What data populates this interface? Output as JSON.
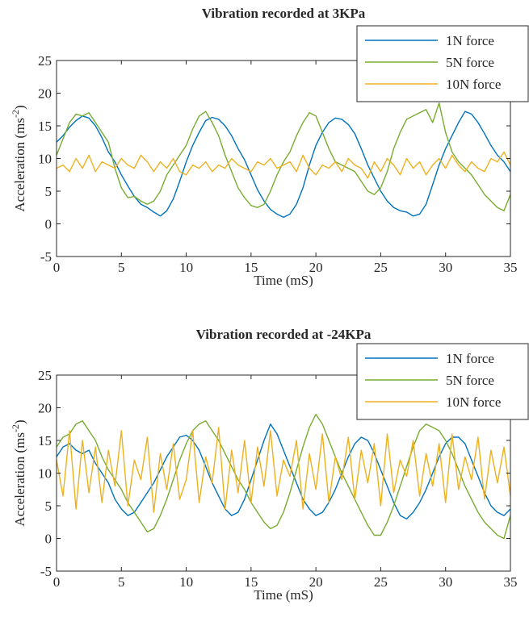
{
  "chart_data": [
    {
      "type": "line",
      "title": "Vibration recorded at 3KPa",
      "xlabel": "Time (mS)",
      "ylabel": "Acceleration (ms",
      "ylabel_sup": "-2",
      "ylabel_end": ")",
      "xlim": [
        0,
        35
      ],
      "ylim": [
        -5,
        25
      ],
      "xticks": [
        0,
        5,
        10,
        15,
        20,
        25,
        30,
        35
      ],
      "yticks": [
        -5,
        0,
        5,
        10,
        15,
        20,
        25
      ],
      "legend_position": "top-right",
      "grid": false,
      "series": [
        {
          "name": "1N force",
          "color": "#0072BD",
          "x": [
            0,
            0.5,
            1,
            1.5,
            2,
            2.5,
            3,
            3.5,
            4,
            4.5,
            5,
            5.5,
            6,
            6.5,
            7,
            7.5,
            8,
            8.5,
            9,
            9.5,
            10,
            10.5,
            11,
            11.5,
            12,
            12.5,
            13,
            13.5,
            14,
            14.5,
            15,
            15.5,
            16,
            16.5,
            17,
            17.5,
            18,
            18.5,
            19,
            19.5,
            20,
            20.5,
            21,
            21.5,
            22,
            22.5,
            23,
            23.5,
            24,
            24.5,
            25,
            25.5,
            26,
            26.5,
            27,
            27.5,
            28,
            28.5,
            29,
            29.5,
            30,
            30.5,
            31,
            31.5,
            32,
            32.5,
            33,
            33.5,
            34,
            34.5,
            35
          ],
          "y": [
            12.5,
            13.5,
            14.8,
            15.8,
            16.5,
            16.2,
            15.0,
            13.2,
            11.0,
            9.5,
            7.5,
            5.8,
            4.2,
            3.0,
            2.5,
            1.8,
            1.2,
            2.0,
            3.8,
            6.5,
            9.5,
            12.0,
            14.0,
            15.8,
            16.3,
            16.0,
            15.0,
            13.5,
            11.5,
            9.8,
            7.5,
            5.2,
            3.5,
            2.2,
            1.5,
            1.0,
            1.5,
            3.0,
            5.5,
            9.0,
            12.0,
            14.0,
            15.5,
            16.2,
            16.0,
            15.2,
            13.8,
            11.5,
            9.0,
            7.0,
            5.0,
            3.5,
            2.5,
            2.0,
            1.8,
            1.2,
            1.5,
            3.0,
            6.0,
            9.0,
            11.5,
            13.5,
            15.5,
            17.2,
            16.8,
            15.5,
            13.8,
            12.0,
            10.5,
            9.5,
            8.0
          ]
        },
        {
          "name": "5N force",
          "color": "#77AC30",
          "x": [
            0,
            0.5,
            1,
            1.5,
            2,
            2.5,
            3,
            3.5,
            4,
            4.5,
            5,
            5.5,
            6,
            6.5,
            7,
            7.5,
            8,
            8.5,
            9,
            9.5,
            10,
            10.5,
            11,
            11.5,
            12,
            12.5,
            13,
            13.5,
            14,
            14.5,
            15,
            15.5,
            16,
            16.5,
            17,
            17.5,
            18,
            18.5,
            19,
            19.5,
            20,
            20.5,
            21,
            21.5,
            22,
            22.5,
            23,
            23.5,
            24,
            24.5,
            25,
            25.5,
            26,
            26.5,
            27,
            27.5,
            28,
            28.5,
            29,
            29.5,
            30,
            30.5,
            31,
            31.5,
            32,
            32.5,
            33,
            33.5,
            34,
            34.5,
            35
          ],
          "y": [
            10.5,
            13.0,
            15.5,
            16.8,
            16.5,
            17.0,
            15.5,
            14.0,
            12.5,
            8.5,
            5.5,
            4.0,
            4.2,
            3.5,
            3.0,
            3.5,
            5.0,
            7.5,
            9.0,
            10.5,
            12.0,
            14.5,
            16.5,
            17.2,
            15.5,
            13.5,
            10.5,
            8.0,
            5.5,
            4.0,
            2.8,
            2.5,
            3.0,
            5.0,
            7.5,
            9.5,
            11.0,
            13.5,
            15.5,
            17.0,
            16.5,
            14.0,
            11.5,
            9.5,
            9.0,
            8.5,
            8.0,
            6.5,
            5.0,
            4.5,
            5.5,
            8.0,
            11.5,
            14.0,
            16.0,
            16.5,
            17.0,
            17.5,
            15.5,
            18.5,
            14.0,
            11.0,
            9.5,
            8.5,
            7.5,
            6.0,
            4.5,
            3.5,
            2.5,
            2.0,
            4.5
          ]
        },
        {
          "name": "10N force",
          "color": "#EDB120",
          "x": [
            0,
            0.5,
            1,
            1.5,
            2,
            2.5,
            3,
            3.5,
            4,
            4.5,
            5,
            5.5,
            6,
            6.5,
            7,
            7.5,
            8,
            8.5,
            9,
            9.5,
            10,
            10.5,
            11,
            11.5,
            12,
            12.5,
            13,
            13.5,
            14,
            14.5,
            15,
            15.5,
            16,
            16.5,
            17,
            17.5,
            18,
            18.5,
            19,
            19.5,
            20,
            20.5,
            21,
            21.5,
            22,
            22.5,
            23,
            23.5,
            24,
            24.5,
            25,
            25.5,
            26,
            26.5,
            27,
            27.5,
            28,
            28.5,
            29,
            29.5,
            30,
            30.5,
            31,
            31.5,
            32,
            32.5,
            33,
            33.5,
            34,
            34.5,
            35
          ],
          "y": [
            8.5,
            9.0,
            8.0,
            10.0,
            8.5,
            10.5,
            8.0,
            9.5,
            9.0,
            8.5,
            10.0,
            9.0,
            8.5,
            10.5,
            9.5,
            8.0,
            9.5,
            8.5,
            10.0,
            8.0,
            7.5,
            9.0,
            8.5,
            9.5,
            8.0,
            9.0,
            8.5,
            10.0,
            9.0,
            8.5,
            8.0,
            9.5,
            9.0,
            10.0,
            8.5,
            9.0,
            9.5,
            8.0,
            10.5,
            8.5,
            7.5,
            9.0,
            8.5,
            9.5,
            8.0,
            10.0,
            9.0,
            8.5,
            7.0,
            9.5,
            8.0,
            10.0,
            9.0,
            7.5,
            10.0,
            8.5,
            9.5,
            7.5,
            9.0,
            10.0,
            8.5,
            10.5,
            9.0,
            8.0,
            9.5,
            8.5,
            8.0,
            10.0,
            9.5,
            11.0,
            9.0
          ]
        }
      ]
    },
    {
      "type": "line",
      "title": "Vibration recorded at -24KPa",
      "xlabel": "Time (mS)",
      "ylabel": "Acceleration (ms",
      "ylabel_sup": "-2",
      "ylabel_end": ")",
      "xlim": [
        0,
        35
      ],
      "ylim": [
        -5,
        25
      ],
      "xticks": [
        0,
        5,
        10,
        15,
        20,
        25,
        30,
        35
      ],
      "yticks": [
        -5,
        0,
        5,
        10,
        15,
        20,
        25
      ],
      "legend_position": "top-right",
      "grid": false,
      "series": [
        {
          "name": "1N force",
          "color": "#0072BD",
          "x": [
            0,
            0.5,
            1,
            1.5,
            2,
            2.5,
            3,
            3.5,
            4,
            4.5,
            5,
            5.5,
            6,
            6.5,
            7,
            7.5,
            8,
            8.5,
            9,
            9.5,
            10,
            10.5,
            11,
            11.5,
            12,
            12.5,
            13,
            13.5,
            14,
            14.5,
            15,
            15.5,
            16,
            16.5,
            17,
            17.5,
            18,
            18.5,
            19,
            19.5,
            20,
            20.5,
            21,
            21.5,
            22,
            22.5,
            23,
            23.5,
            24,
            24.5,
            25,
            25.5,
            26,
            26.5,
            27,
            27.5,
            28,
            28.5,
            29,
            29.5,
            30,
            30.5,
            31,
            31.5,
            32,
            32.5,
            33,
            33.5,
            34,
            34.5,
            35
          ],
          "y": [
            12.5,
            14.0,
            14.5,
            13.5,
            13.0,
            13.5,
            11.5,
            10.0,
            8.5,
            6.0,
            4.5,
            3.5,
            4.0,
            5.5,
            7.0,
            8.5,
            10.5,
            12.5,
            14.0,
            15.5,
            15.8,
            15.0,
            13.5,
            11.0,
            8.5,
            6.5,
            4.5,
            3.5,
            4.0,
            6.0,
            9.0,
            12.0,
            15.0,
            17.5,
            16.0,
            13.5,
            11.0,
            8.5,
            6.0,
            4.5,
            3.5,
            4.0,
            5.5,
            7.5,
            10.0,
            12.5,
            14.5,
            15.5,
            15.0,
            13.0,
            10.5,
            8.0,
            5.5,
            3.5,
            3.0,
            4.0,
            5.5,
            7.5,
            10.0,
            12.5,
            14.5,
            15.5,
            15.5,
            14.5,
            12.0,
            9.5,
            7.0,
            5.0,
            4.0,
            3.5,
            4.5
          ]
        },
        {
          "name": "5N force",
          "color": "#77AC30",
          "x": [
            0,
            0.5,
            1,
            1.5,
            2,
            2.5,
            3,
            3.5,
            4,
            4.5,
            5,
            5.5,
            6,
            6.5,
            7,
            7.5,
            8,
            8.5,
            9,
            9.5,
            10,
            10.5,
            11,
            11.5,
            12,
            12.5,
            13,
            13.5,
            14,
            14.5,
            15,
            15.5,
            16,
            16.5,
            17,
            17.5,
            18,
            18.5,
            19,
            19.5,
            20,
            20.5,
            21,
            21.5,
            22,
            22.5,
            23,
            23.5,
            24,
            24.5,
            25,
            25.5,
            26,
            26.5,
            27,
            27.5,
            28,
            28.5,
            29,
            29.5,
            30,
            30.5,
            31,
            31.5,
            32,
            32.5,
            33,
            33.5,
            34,
            34.5,
            35
          ],
          "y": [
            14.0,
            15.5,
            16.0,
            17.5,
            18.0,
            16.5,
            15.0,
            12.5,
            10.5,
            9.0,
            7.5,
            5.5,
            4.0,
            2.5,
            1.0,
            1.5,
            3.5,
            6.0,
            9.0,
            12.0,
            14.5,
            16.5,
            17.5,
            18.0,
            16.5,
            15.0,
            13.0,
            11.0,
            9.0,
            7.5,
            5.5,
            4.0,
            2.5,
            1.5,
            2.0,
            4.0,
            7.0,
            10.5,
            14.0,
            17.0,
            19.0,
            17.5,
            15.0,
            12.5,
            10.0,
            8.0,
            6.0,
            4.0,
            2.0,
            0.5,
            0.5,
            2.5,
            5.0,
            8.0,
            11.0,
            14.0,
            16.5,
            17.5,
            17.0,
            16.5,
            15.0,
            13.0,
            10.5,
            8.0,
            6.0,
            4.0,
            2.5,
            1.5,
            0.5,
            0.0,
            3.5
          ]
        },
        {
          "name": "10N force",
          "color": "#EDB120",
          "x": [
            0,
            0.5,
            1,
            1.5,
            2,
            2.5,
            3,
            3.5,
            4,
            4.5,
            5,
            5.5,
            6,
            6.5,
            7,
            7.5,
            8,
            8.5,
            9,
            9.5,
            10,
            10.5,
            11,
            11.5,
            12,
            12.5,
            13,
            13.5,
            14,
            14.5,
            15,
            15.5,
            16,
            16.5,
            17,
            17.5,
            18,
            18.5,
            19,
            19.5,
            20,
            20.5,
            21,
            21.5,
            22,
            22.5,
            23,
            23.5,
            24,
            24.5,
            25,
            25.5,
            26,
            26.5,
            27,
            27.5,
            28,
            28.5,
            29,
            29.5,
            30,
            30.5,
            31,
            31.5,
            32,
            32.5,
            33,
            33.5,
            34,
            34.5,
            35
          ],
          "y": [
            12.0,
            6.5,
            16.5,
            4.5,
            15.0,
            7.0,
            14.0,
            5.5,
            13.5,
            8.0,
            16.5,
            5.0,
            12.0,
            9.0,
            15.5,
            4.0,
            13.0,
            7.5,
            14.5,
            6.0,
            9.0,
            16.5,
            5.5,
            12.5,
            8.5,
            17.0,
            4.5,
            13.5,
            7.0,
            15.0,
            5.5,
            14.0,
            8.0,
            16.5,
            6.5,
            12.0,
            9.5,
            15.0,
            4.5,
            13.0,
            7.5,
            16.0,
            5.5,
            12.5,
            9.0,
            15.5,
            6.0,
            13.5,
            8.5,
            14.5,
            5.0,
            16.0,
            7.0,
            12.0,
            9.5,
            15.0,
            6.5,
            13.0,
            8.0,
            14.5,
            5.5,
            16.0,
            7.5,
            12.5,
            9.0,
            15.5,
            6.0,
            13.5,
            8.5,
            14.0,
            6.5
          ]
        }
      ]
    }
  ]
}
